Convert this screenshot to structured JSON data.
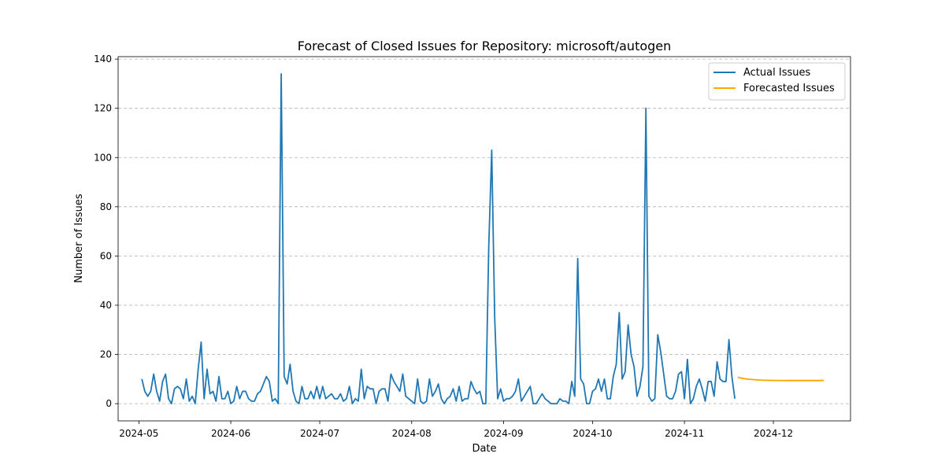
{
  "chart_data": {
    "type": "line",
    "title": "Forecast of Closed Issues for Repository: microsoft/autogen",
    "xlabel": "Date",
    "ylabel": "Number of Issues",
    "x_range": [
      "2024-04-24",
      "2024-12-27"
    ],
    "ylim": [
      -7,
      141
    ],
    "grid": "horizontal, dashed",
    "legend_position": "top-right",
    "x_ticks": [
      "2024-05",
      "2024-06",
      "2024-07",
      "2024-08",
      "2024-09",
      "2024-10",
      "2024-11",
      "2024-12"
    ],
    "y_ticks": [
      0,
      20,
      40,
      60,
      80,
      100,
      120,
      140
    ],
    "series": [
      {
        "name": "Actual Issues",
        "color": "#1f77b4",
        "x_start": "2024-05-02",
        "interval": "1 day",
        "values": [
          10,
          5,
          3,
          5,
          12,
          5,
          1,
          9,
          12,
          2,
          0,
          6,
          7,
          6,
          2,
          10,
          1,
          3,
          0,
          14,
          25,
          2,
          14,
          4,
          5,
          1,
          11,
          2,
          2,
          5,
          0,
          1,
          7,
          2,
          5,
          5,
          2,
          1,
          1,
          4,
          5,
          8,
          11,
          9,
          1,
          2,
          0,
          134,
          11,
          8,
          16,
          5,
          1,
          0,
          7,
          2,
          2,
          5,
          2,
          7,
          2,
          7,
          2,
          3,
          4,
          2,
          2,
          4,
          1,
          2,
          7,
          0,
          2,
          1,
          14,
          2,
          7,
          6,
          6,
          0,
          5,
          6,
          6,
          1,
          12,
          9,
          7,
          5,
          12,
          3,
          2,
          1,
          0,
          10,
          1,
          0,
          1,
          10,
          3,
          5,
          8,
          2,
          0,
          2,
          3,
          6,
          1,
          7,
          1,
          2,
          2,
          9,
          6,
          4,
          5,
          0,
          0,
          64,
          103,
          35,
          2,
          6,
          1,
          2,
          2,
          3,
          5,
          10,
          1,
          3,
          5,
          7,
          0,
          0,
          2,
          4,
          2,
          1,
          0,
          0,
          0,
          2,
          1,
          1,
          0,
          9,
          3,
          59,
          10,
          8,
          0,
          0,
          5,
          6,
          10,
          5,
          10,
          2,
          2,
          11,
          16,
          37,
          10,
          13,
          32,
          20,
          15,
          3,
          7,
          15,
          120,
          3,
          1,
          2,
          28,
          21,
          12,
          3,
          2,
          2,
          5,
          12,
          13,
          2,
          18,
          0,
          2,
          7,
          10,
          6,
          1,
          9,
          9,
          3,
          17,
          10,
          9,
          9,
          26,
          11,
          2
        ]
      },
      {
        "name": "Forecasted Issues",
        "color": "#ffa500",
        "x_start": "2024-11-19",
        "interval": "1 day",
        "values": [
          10.7,
          10.4,
          10.2,
          10,
          9.9,
          9.8,
          9.7,
          9.6,
          9.55,
          9.5,
          9.48,
          9.45,
          9.43,
          9.42,
          9.41,
          9.4,
          9.4,
          9.4,
          9.4,
          9.4,
          9.4,
          9.4,
          9.4,
          9.4,
          9.4,
          9.4,
          9.4,
          9.4,
          9.4,
          9.4
        ]
      }
    ]
  }
}
